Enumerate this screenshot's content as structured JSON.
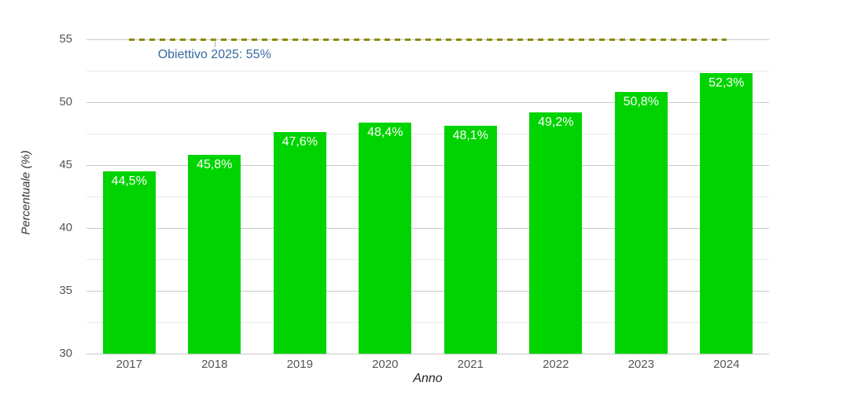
{
  "chart_data": {
    "type": "bar",
    "title": "",
    "categories": [
      "2017",
      "2018",
      "2019",
      "2020",
      "2021",
      "2022",
      "2023",
      "2024"
    ],
    "values": [
      44.5,
      45.8,
      47.6,
      48.4,
      48.1,
      49.2,
      50.8,
      52.3
    ],
    "value_labels": [
      "44,5%",
      "45,8%",
      "47,6%",
      "48,4%",
      "48,1%",
      "49,2%",
      "50,8%",
      "52,3%"
    ],
    "xlabel": "Anno",
    "ylabel": "Percentuale (%)",
    "ylim": [
      30,
      55
    ],
    "yticks": [
      30,
      35,
      40,
      45,
      50,
      55
    ],
    "ytick_labels": [
      "30",
      "35",
      "40",
      "45",
      "50",
      "55"
    ],
    "minor_ticks": [
      32.5,
      37.5,
      42.5,
      47.5,
      52.5
    ],
    "grid": "on",
    "legend": "none",
    "target_line": {
      "value": 55,
      "label": "Obiettivo 2025: 55%",
      "style": "dashed",
      "color": "#8a8a00",
      "label_color": "#35689d",
      "anchor_category_index": 1,
      "start_category_index": 0,
      "end_category_index": 7
    },
    "colors": {
      "bar": "#00d400",
      "bar_label": "#ffffff",
      "major_grid": "#c9c9c9",
      "minor_grid": "#e9e9e9",
      "tick_text": "#555555",
      "axis_title_text": "#333333",
      "background": "#ffffff"
    }
  }
}
